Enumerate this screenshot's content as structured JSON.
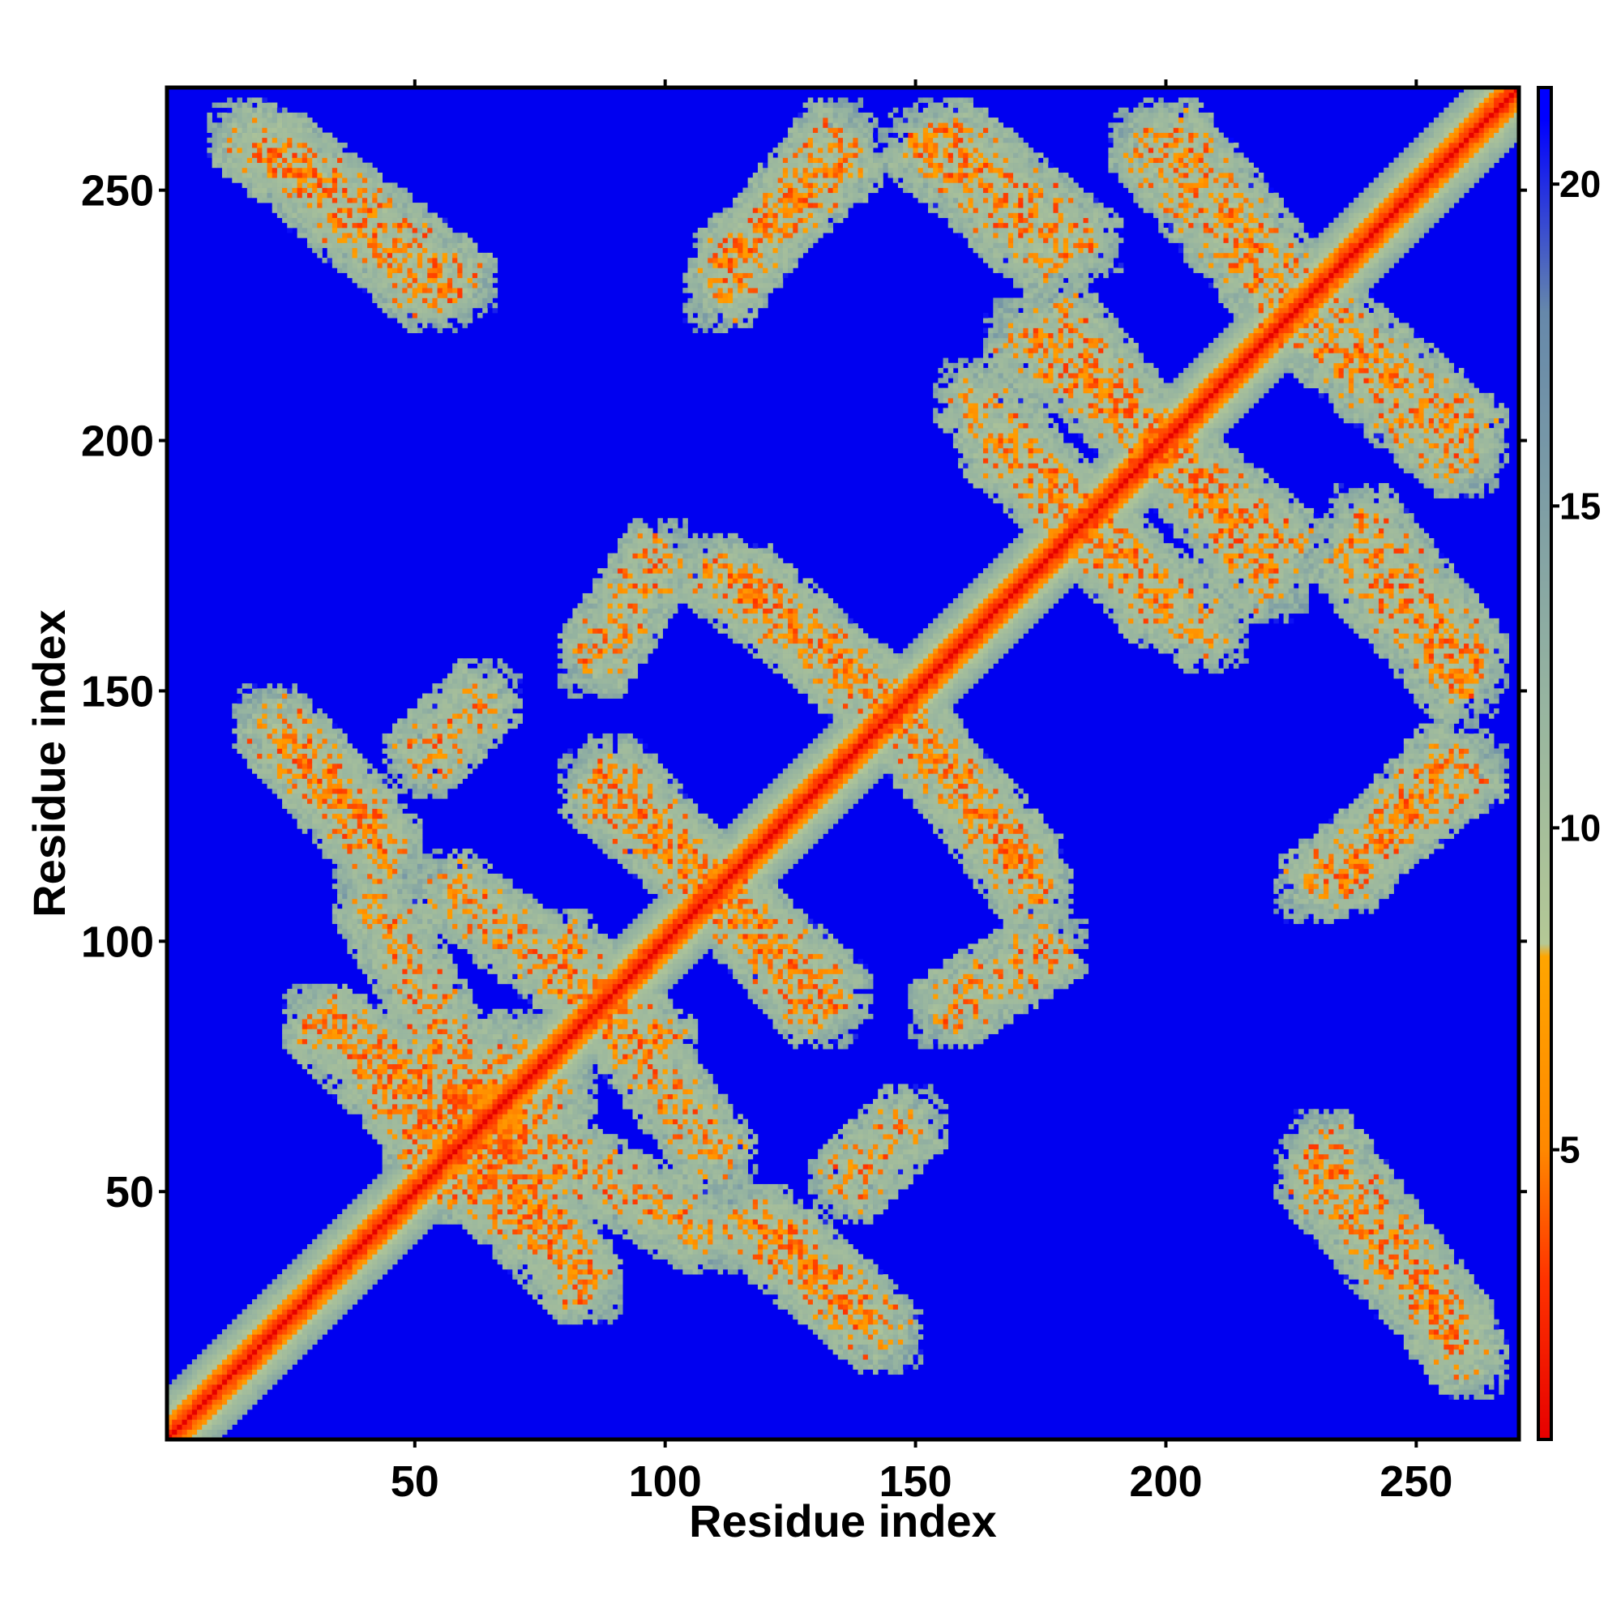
{
  "chart_data": {
    "type": "heatmap",
    "title": "",
    "xlabel": "Residue index",
    "ylabel": "Residue index",
    "xlim": [
      1,
      270
    ],
    "ylim": [
      1,
      270
    ],
    "x_ticks": [
      50,
      100,
      150,
      200,
      250
    ],
    "y_ticks": [
      50,
      100,
      150,
      200,
      250
    ],
    "x_tick_labels": [
      "50",
      "100",
      "150",
      "200",
      "250"
    ],
    "y_tick_labels": [
      "50",
      "100",
      "150",
      "200",
      "250"
    ],
    "colorbar": {
      "range": [
        0.5,
        21.5
      ],
      "ticks": [
        5,
        10,
        15,
        20
      ],
      "tick_labels": [
        "5",
        "10",
        "15",
        "20"
      ],
      "colors": [
        {
          "value": 0.5,
          "color": "#e60000"
        },
        {
          "value": 3,
          "color": "#ff3300"
        },
        {
          "value": 5,
          "color": "#ff8800"
        },
        {
          "value": 8,
          "color": "#ffa500"
        },
        {
          "value": 8.2,
          "color": "#b4c896"
        },
        {
          "value": 12,
          "color": "#96b4a0"
        },
        {
          "value": 18,
          "color": "#6688aa"
        },
        {
          "value": 21,
          "color": "#0000ff"
        }
      ]
    },
    "background_value": 21,
    "background_color": "#0000f0",
    "description": "Symmetric residue distance map; diagonal band near 0 (red), off-diagonal contact stripes at 8-14 (grey-green with orange/red contacts), background at maximum (blue).",
    "contact_bands": [
      {
        "type": "anti",
        "from": [
          15,
          262
        ],
        "to": [
          55,
          228
        ]
      },
      {
        "type": "anti",
        "from": [
          40,
          110
        ],
        "to": [
          85,
          30
        ]
      },
      {
        "type": "anti",
        "from": [
          30,
          85
        ],
        "to": [
          70,
          45
        ]
      },
      {
        "type": "anti",
        "from": [
          25,
          140
        ],
        "to": [
          45,
          118
        ]
      },
      {
        "type": "anti",
        "from": [
          55,
          112
        ],
        "to": [
          100,
          78
        ]
      },
      {
        "type": "anti",
        "from": [
          85,
          132
        ],
        "to": [
          135,
          88
        ]
      },
      {
        "type": "anti",
        "from": [
          115,
          173
        ],
        "to": [
          145,
          145
        ]
      },
      {
        "type": "anti",
        "from": [
          150,
          142
        ],
        "to": [
          175,
          108
        ]
      },
      {
        "type": "anti",
        "from": [
          115,
          45
        ],
        "to": [
          145,
          20
        ]
      },
      {
        "type": "anti",
        "from": [
          155,
          262
        ],
        "to": [
          185,
          238
        ]
      },
      {
        "type": "anti",
        "from": [
          200,
          262
        ],
        "to": [
          225,
          232
        ]
      },
      {
        "type": "anti",
        "from": [
          160,
          210
        ],
        "to": [
          200,
          165
        ]
      },
      {
        "type": "anti",
        "from": [
          170,
          222
        ],
        "to": [
          225,
          178
        ]
      },
      {
        "type": "anti",
        "from": [
          225,
          225
        ],
        "to": [
          260,
          195
        ]
      },
      {
        "type": "anti",
        "from": [
          235,
          178
        ],
        "to": [
          260,
          150
        ]
      },
      {
        "type": "anti",
        "from": [
          230,
          60
        ],
        "to": [
          260,
          20
        ]
      },
      {
        "type": "para",
        "from": [
          110,
          228
        ],
        "to": [
          135,
          262
        ]
      },
      {
        "type": "para",
        "from": [
          235,
          112
        ],
        "to": [
          258,
          138
        ]
      },
      {
        "type": "para",
        "from": [
          85,
          155
        ],
        "to": [
          100,
          178
        ]
      },
      {
        "type": "para",
        "from": [
          55,
          50
        ],
        "to": [
          80,
          72
        ]
      },
      {
        "type": "para",
        "from": [
          135,
          50
        ],
        "to": [
          150,
          65
        ]
      }
    ]
  }
}
